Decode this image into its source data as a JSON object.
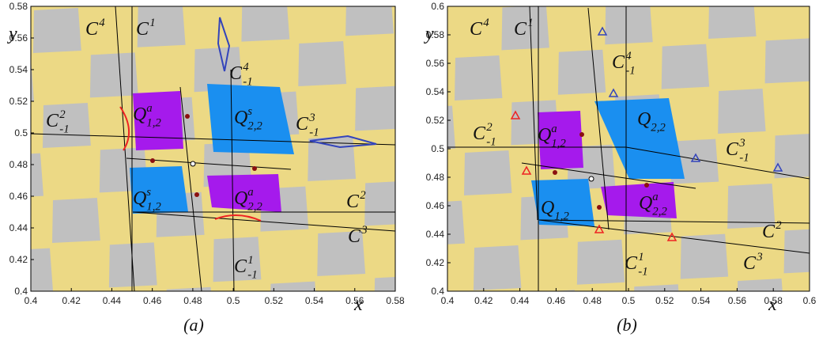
{
  "colors": {
    "yellow": "#ecd985",
    "gray": "#c0c0c0",
    "magenta": "#a51aec",
    "blue": "#1a8ff0",
    "red_curve": "#ee2222",
    "blue_curve": "#3344bb",
    "dot": "#8b1010"
  },
  "panels": [
    {
      "caption": "(a)",
      "axes": {
        "x_label": "x",
        "y_label": "y",
        "x_ticks": [
          "0.4",
          "0.42",
          "0.44",
          "0.46",
          "0.48",
          "0.5",
          "0.52",
          "0.54",
          "0.56",
          "0.58"
        ],
        "y_ticks": [
          "0.4",
          "0.42",
          "0.44",
          "0.46",
          "0.48",
          "0.5",
          "0.52",
          "0.54",
          "0.56",
          "0.58"
        ]
      },
      "curve_labels": [
        {
          "base": "C",
          "sup": "4",
          "sub": ""
        },
        {
          "base": "C",
          "sup": "1",
          "sub": ""
        },
        {
          "base": "C",
          "sup": "4",
          "sub": "-1"
        },
        {
          "base": "C",
          "sup": "2",
          "sub": "-1"
        },
        {
          "base": "C",
          "sup": "3",
          "sub": "-1"
        },
        {
          "base": "C",
          "sup": "2",
          "sub": ""
        },
        {
          "base": "C",
          "sup": "3",
          "sub": ""
        },
        {
          "base": "C",
          "sup": "1",
          "sub": "-1"
        }
      ],
      "region_labels": [
        {
          "base": "Q",
          "sup": "a",
          "sub": "1,2"
        },
        {
          "base": "Q",
          "sup": "s",
          "sub": "2,2"
        },
        {
          "base": "Q",
          "sup": "s",
          "sub": "1,2"
        },
        {
          "base": "Q",
          "sup": "a",
          "sub": "2,2"
        }
      ]
    },
    {
      "caption": "(b)",
      "axes": {
        "x_label": "x",
        "y_label": "y",
        "x_ticks": [
          "0.4",
          "0.42",
          "0.44",
          "0.46",
          "0.48",
          "0.5",
          "0.52",
          "0.54",
          "0.56",
          "0.58",
          "0.6"
        ],
        "y_ticks": [
          "0.4",
          "0.42",
          "0.44",
          "0.46",
          "0.48",
          "0.5",
          "0.52",
          "0.54",
          "0.56",
          "0.58",
          "0.6"
        ]
      },
      "curve_labels": [
        {
          "base": "C",
          "sup": "4",
          "sub": ""
        },
        {
          "base": "C",
          "sup": "1",
          "sub": ""
        },
        {
          "base": "C",
          "sup": "4",
          "sub": "-1"
        },
        {
          "base": "C",
          "sup": "2",
          "sub": "-1"
        },
        {
          "base": "C",
          "sup": "3",
          "sub": "-1"
        },
        {
          "base": "C",
          "sup": "2",
          "sub": ""
        },
        {
          "base": "C",
          "sup": "3",
          "sub": ""
        },
        {
          "base": "C",
          "sup": "1",
          "sub": "-1"
        }
      ],
      "region_labels": [
        {
          "base": "Q",
          "sup": "a",
          "sub": "1,2"
        },
        {
          "base": "Q",
          "sup": "",
          "sub": "2,2"
        },
        {
          "base": "Q",
          "sup": "",
          "sub": "1,2"
        },
        {
          "base": "Q",
          "sup": "a",
          "sub": "2,2"
        }
      ]
    }
  ]
}
